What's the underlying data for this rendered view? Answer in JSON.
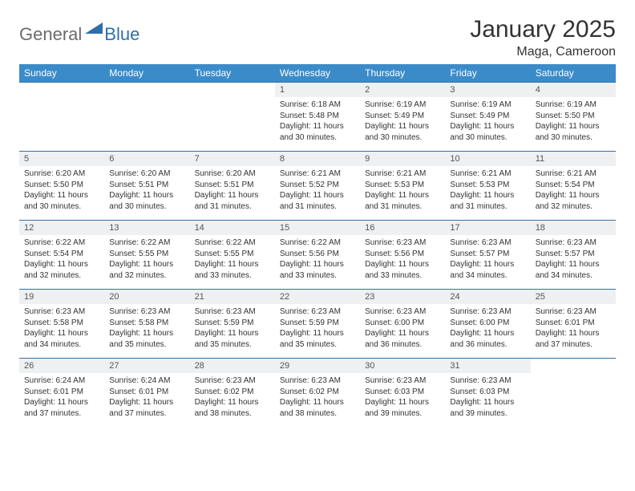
{
  "logo": {
    "general": "General",
    "blue": "Blue"
  },
  "title": "January 2025",
  "location": "Maga, Cameroon",
  "colors": {
    "header_bg": "#3b8bc9",
    "header_text": "#ffffff",
    "daynum_bg": "#eef0f2",
    "daynum_text": "#555555",
    "body_text": "#333333",
    "row_border": "#3b6fa0",
    "logo_gray": "#6b6b6b",
    "logo_blue": "#2f6fa8",
    "page_bg": "#ffffff"
  },
  "typography": {
    "month_title_size": 30,
    "location_size": 16,
    "dow_size": 12,
    "daynum_size": 11,
    "body_size": 10,
    "logo_size": 22
  },
  "dow": [
    "Sunday",
    "Monday",
    "Tuesday",
    "Wednesday",
    "Thursday",
    "Friday",
    "Saturday"
  ],
  "weeks": [
    [
      {
        "n": "",
        "s": "",
        "t": "",
        "d": ""
      },
      {
        "n": "",
        "s": "",
        "t": "",
        "d": ""
      },
      {
        "n": "",
        "s": "",
        "t": "",
        "d": ""
      },
      {
        "n": "1",
        "s": "Sunrise: 6:18 AM",
        "t": "Sunset: 5:48 PM",
        "d": "Daylight: 11 hours and 30 minutes."
      },
      {
        "n": "2",
        "s": "Sunrise: 6:19 AM",
        "t": "Sunset: 5:49 PM",
        "d": "Daylight: 11 hours and 30 minutes."
      },
      {
        "n": "3",
        "s": "Sunrise: 6:19 AM",
        "t": "Sunset: 5:49 PM",
        "d": "Daylight: 11 hours and 30 minutes."
      },
      {
        "n": "4",
        "s": "Sunrise: 6:19 AM",
        "t": "Sunset: 5:50 PM",
        "d": "Daylight: 11 hours and 30 minutes."
      }
    ],
    [
      {
        "n": "5",
        "s": "Sunrise: 6:20 AM",
        "t": "Sunset: 5:50 PM",
        "d": "Daylight: 11 hours and 30 minutes."
      },
      {
        "n": "6",
        "s": "Sunrise: 6:20 AM",
        "t": "Sunset: 5:51 PM",
        "d": "Daylight: 11 hours and 30 minutes."
      },
      {
        "n": "7",
        "s": "Sunrise: 6:20 AM",
        "t": "Sunset: 5:51 PM",
        "d": "Daylight: 11 hours and 31 minutes."
      },
      {
        "n": "8",
        "s": "Sunrise: 6:21 AM",
        "t": "Sunset: 5:52 PM",
        "d": "Daylight: 11 hours and 31 minutes."
      },
      {
        "n": "9",
        "s": "Sunrise: 6:21 AM",
        "t": "Sunset: 5:53 PM",
        "d": "Daylight: 11 hours and 31 minutes."
      },
      {
        "n": "10",
        "s": "Sunrise: 6:21 AM",
        "t": "Sunset: 5:53 PM",
        "d": "Daylight: 11 hours and 31 minutes."
      },
      {
        "n": "11",
        "s": "Sunrise: 6:21 AM",
        "t": "Sunset: 5:54 PM",
        "d": "Daylight: 11 hours and 32 minutes."
      }
    ],
    [
      {
        "n": "12",
        "s": "Sunrise: 6:22 AM",
        "t": "Sunset: 5:54 PM",
        "d": "Daylight: 11 hours and 32 minutes."
      },
      {
        "n": "13",
        "s": "Sunrise: 6:22 AM",
        "t": "Sunset: 5:55 PM",
        "d": "Daylight: 11 hours and 32 minutes."
      },
      {
        "n": "14",
        "s": "Sunrise: 6:22 AM",
        "t": "Sunset: 5:55 PM",
        "d": "Daylight: 11 hours and 33 minutes."
      },
      {
        "n": "15",
        "s": "Sunrise: 6:22 AM",
        "t": "Sunset: 5:56 PM",
        "d": "Daylight: 11 hours and 33 minutes."
      },
      {
        "n": "16",
        "s": "Sunrise: 6:23 AM",
        "t": "Sunset: 5:56 PM",
        "d": "Daylight: 11 hours and 33 minutes."
      },
      {
        "n": "17",
        "s": "Sunrise: 6:23 AM",
        "t": "Sunset: 5:57 PM",
        "d": "Daylight: 11 hours and 34 minutes."
      },
      {
        "n": "18",
        "s": "Sunrise: 6:23 AM",
        "t": "Sunset: 5:57 PM",
        "d": "Daylight: 11 hours and 34 minutes."
      }
    ],
    [
      {
        "n": "19",
        "s": "Sunrise: 6:23 AM",
        "t": "Sunset: 5:58 PM",
        "d": "Daylight: 11 hours and 34 minutes."
      },
      {
        "n": "20",
        "s": "Sunrise: 6:23 AM",
        "t": "Sunset: 5:58 PM",
        "d": "Daylight: 11 hours and 35 minutes."
      },
      {
        "n": "21",
        "s": "Sunrise: 6:23 AM",
        "t": "Sunset: 5:59 PM",
        "d": "Daylight: 11 hours and 35 minutes."
      },
      {
        "n": "22",
        "s": "Sunrise: 6:23 AM",
        "t": "Sunset: 5:59 PM",
        "d": "Daylight: 11 hours and 35 minutes."
      },
      {
        "n": "23",
        "s": "Sunrise: 6:23 AM",
        "t": "Sunset: 6:00 PM",
        "d": "Daylight: 11 hours and 36 minutes."
      },
      {
        "n": "24",
        "s": "Sunrise: 6:23 AM",
        "t": "Sunset: 6:00 PM",
        "d": "Daylight: 11 hours and 36 minutes."
      },
      {
        "n": "25",
        "s": "Sunrise: 6:23 AM",
        "t": "Sunset: 6:01 PM",
        "d": "Daylight: 11 hours and 37 minutes."
      }
    ],
    [
      {
        "n": "26",
        "s": "Sunrise: 6:24 AM",
        "t": "Sunset: 6:01 PM",
        "d": "Daylight: 11 hours and 37 minutes."
      },
      {
        "n": "27",
        "s": "Sunrise: 6:24 AM",
        "t": "Sunset: 6:01 PM",
        "d": "Daylight: 11 hours and 37 minutes."
      },
      {
        "n": "28",
        "s": "Sunrise: 6:23 AM",
        "t": "Sunset: 6:02 PM",
        "d": "Daylight: 11 hours and 38 minutes."
      },
      {
        "n": "29",
        "s": "Sunrise: 6:23 AM",
        "t": "Sunset: 6:02 PM",
        "d": "Daylight: 11 hours and 38 minutes."
      },
      {
        "n": "30",
        "s": "Sunrise: 6:23 AM",
        "t": "Sunset: 6:03 PM",
        "d": "Daylight: 11 hours and 39 minutes."
      },
      {
        "n": "31",
        "s": "Sunrise: 6:23 AM",
        "t": "Sunset: 6:03 PM",
        "d": "Daylight: 11 hours and 39 minutes."
      },
      {
        "n": "",
        "s": "",
        "t": "",
        "d": ""
      }
    ]
  ]
}
